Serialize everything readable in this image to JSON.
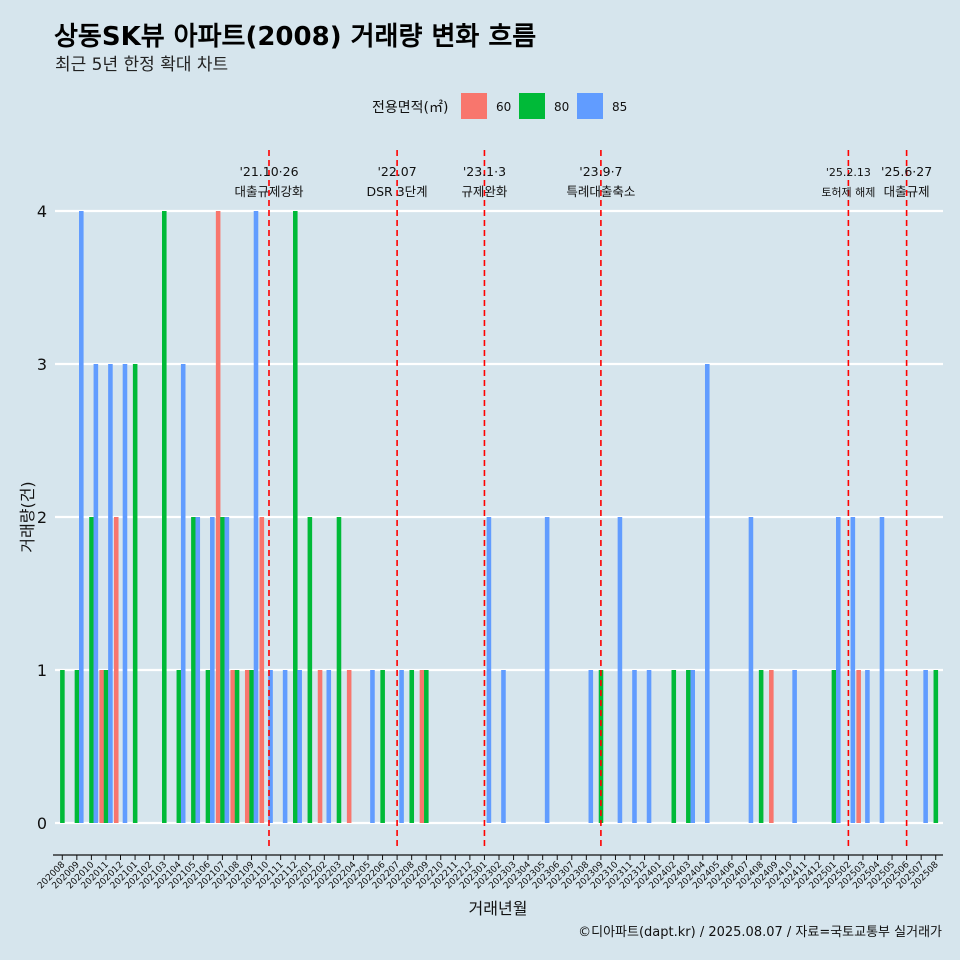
{
  "title": "상동SK뷰 아파트(2008) 거래량 변화 흐름",
  "subtitle": "최근 5년 한정 확대 차트",
  "caption": "©디아파트(dapt.kr) / 2025.08.07 / 자료=국토교통부 실거래가",
  "colors": {
    "background": "#d6e5ed",
    "s60": "#f8766d",
    "s80": "#00ba38",
    "s85": "#619cff",
    "event_line": "#ff0000"
  },
  "chart_data": {
    "type": "bar",
    "xlabel": "거래년월",
    "ylabel": "거래량(건)",
    "ylim": [
      0,
      4
    ],
    "yticks": [
      0,
      1,
      2,
      3,
      4
    ],
    "grid": true,
    "legend": {
      "title": "전용면적(㎡)",
      "position": "top",
      "entries": [
        "60",
        "80",
        "85"
      ]
    },
    "categories": [
      "202008",
      "202009",
      "202010",
      "202011",
      "202012",
      "202101",
      "202102",
      "202103",
      "202104",
      "202105",
      "202106",
      "202107",
      "202108",
      "202109",
      "202110",
      "202111",
      "202112",
      "202201",
      "202202",
      "202203",
      "202204",
      "202205",
      "202206",
      "202207",
      "202208",
      "202209",
      "202210",
      "202211",
      "202212",
      "202301",
      "202302",
      "202303",
      "202304",
      "202305",
      "202306",
      "202307",
      "202308",
      "202309",
      "202310",
      "202311",
      "202312",
      "202401",
      "202402",
      "202403",
      "202404",
      "202405",
      "202406",
      "202407",
      "202408",
      "202409",
      "202410",
      "202411",
      "202412",
      "202501",
      "202502",
      "202503",
      "202504",
      "202505",
      "202506",
      "202507",
      "202508"
    ],
    "series": [
      {
        "name": "60",
        "values": [
          0,
          0,
          0,
          1,
          2,
          0,
          0,
          0,
          0,
          0,
          0,
          4,
          1,
          1,
          2,
          0,
          0,
          0,
          1,
          0,
          1,
          0,
          0,
          0,
          0,
          1,
          0,
          0,
          0,
          0,
          0,
          0,
          0,
          0,
          0,
          0,
          0,
          0,
          0,
          0,
          0,
          0,
          0,
          0,
          0,
          0,
          0,
          0,
          0,
          1,
          0,
          0,
          0,
          0,
          0,
          1,
          0,
          0,
          0,
          0,
          0
        ]
      },
      {
        "name": "80",
        "values": [
          1,
          1,
          2,
          1,
          0,
          3,
          0,
          4,
          1,
          2,
          1,
          2,
          1,
          1,
          0,
          0,
          4,
          2,
          0,
          2,
          0,
          0,
          1,
          0,
          1,
          1,
          0,
          0,
          0,
          0,
          0,
          0,
          0,
          0,
          0,
          0,
          0,
          1,
          0,
          0,
          0,
          0,
          1,
          1,
          0,
          0,
          0,
          0,
          1,
          0,
          0,
          0,
          0,
          1,
          0,
          0,
          0,
          0,
          0,
          0,
          1
        ]
      },
      {
        "name": "85",
        "values": [
          0,
          4,
          3,
          3,
          3,
          0,
          0,
          0,
          3,
          2,
          2,
          2,
          0,
          4,
          1,
          1,
          1,
          0,
          1,
          0,
          0,
          1,
          0,
          1,
          0,
          0,
          0,
          0,
          0,
          2,
          1,
          0,
          0,
          2,
          0,
          0,
          1,
          0,
          2,
          1,
          1,
          0,
          0,
          1,
          3,
          0,
          0,
          2,
          0,
          0,
          1,
          0,
          0,
          2,
          2,
          1,
          2,
          0,
          0,
          1,
          0
        ]
      }
    ],
    "events": [
      {
        "x": "202110",
        "date": "'21.10·26",
        "label": "대출규제강화"
      },
      {
        "x": "202207",
        "date": "'22.07",
        "label": "DSR 3단계"
      },
      {
        "x": "202301",
        "date": "'23.1·3",
        "label": "규제완화"
      },
      {
        "x": "202309",
        "date": "'23.9·7",
        "label": "특례대출축소"
      },
      {
        "x": "202502",
        "date": "'25.2.13",
        "label": "토허제 해제"
      },
      {
        "x": "202506",
        "date": "'25.6·27",
        "label": "대출규제"
      }
    ]
  }
}
